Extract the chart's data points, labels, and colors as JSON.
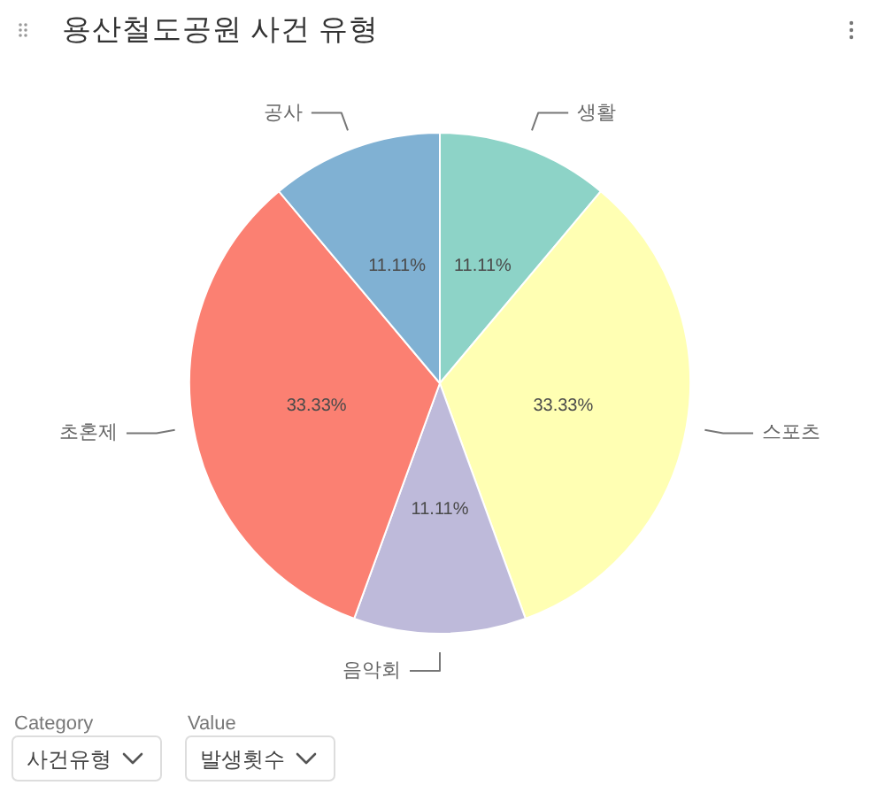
{
  "chart_data": {
    "type": "pie",
    "title": "용산철도공원 사건 유형",
    "categories": [
      "생활",
      "스포츠",
      "음악회",
      "초혼제",
      "공사"
    ],
    "values": [
      11.11,
      33.33,
      11.11,
      33.33,
      11.11
    ],
    "colors": [
      "#8dd3c7",
      "#ffffb3",
      "#bebada",
      "#fb8072",
      "#80b1d3"
    ],
    "value_labels": [
      "11.11%",
      "33.33%",
      "11.11%",
      "33.33%",
      "11.11%"
    ],
    "annotations": [
      "Category",
      "사건유형",
      "Value",
      "발생횟수"
    ]
  }
}
